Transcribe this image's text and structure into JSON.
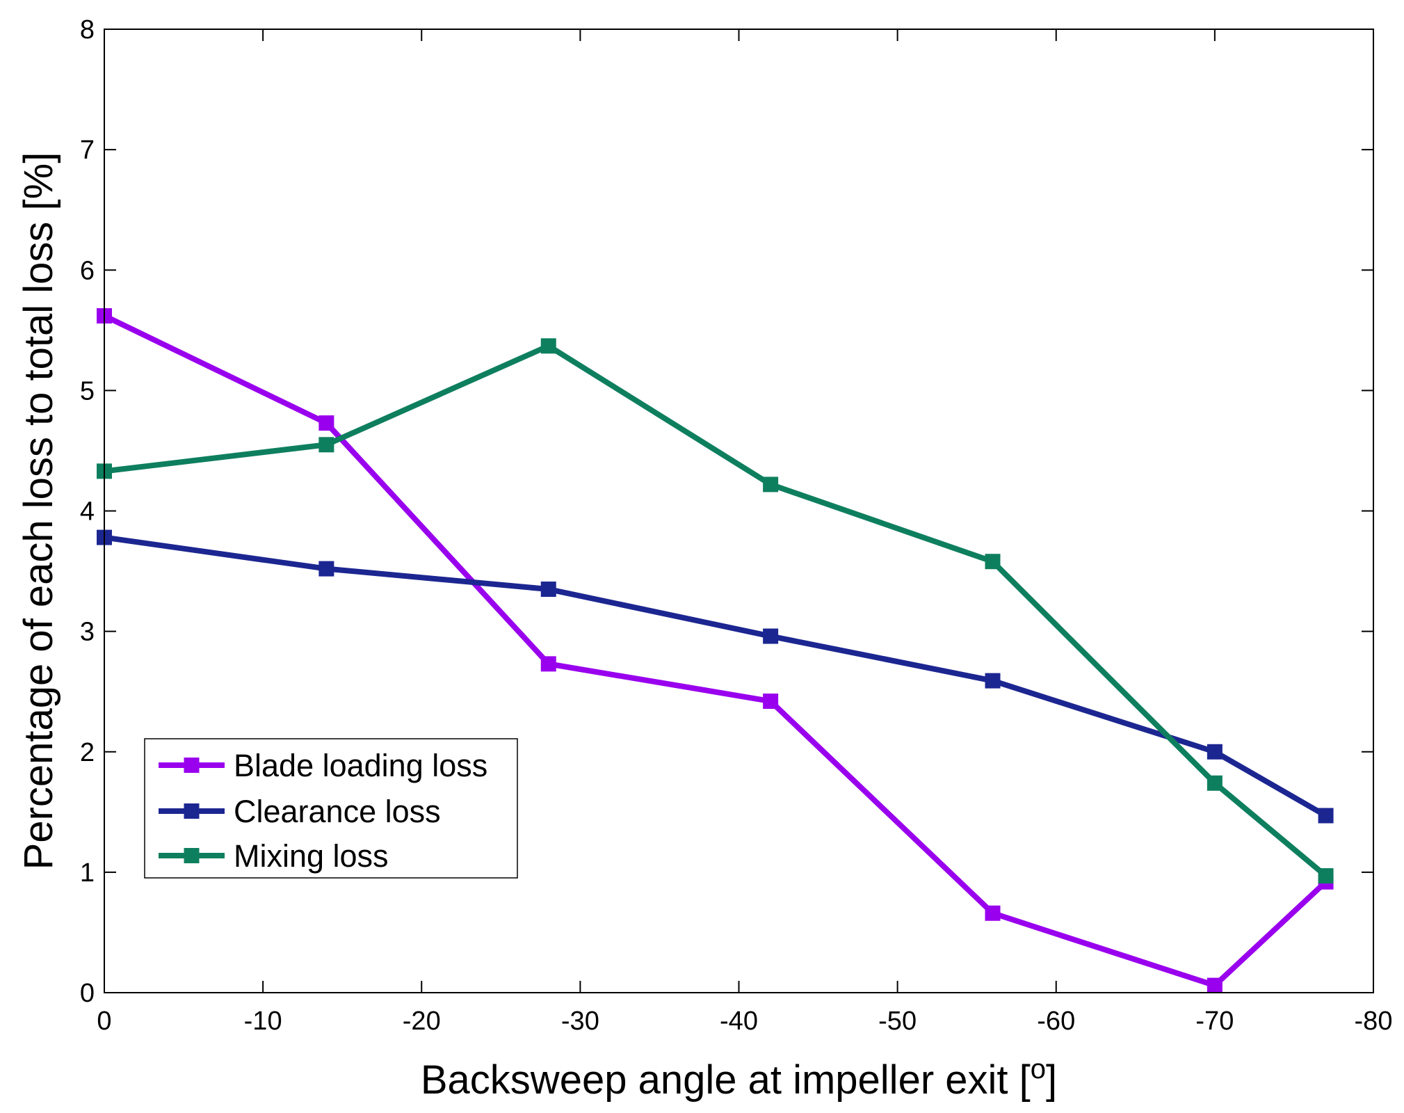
{
  "chart_data": {
    "type": "line",
    "title": "",
    "xlabel": "Backsweep angle at impeller exit [",
    "xlabel_sup": "o",
    "xlabel_close": "]",
    "ylabel": "Percentage of each loss to total loss [%]",
    "xlim": [
      0,
      -80
    ],
    "ylim": [
      0,
      8
    ],
    "grid": false,
    "legend_position": "lower-left",
    "x_ticks": [
      0,
      -10,
      -20,
      -30,
      -40,
      -50,
      -60,
      -70,
      -80
    ],
    "y_ticks": [
      0,
      1,
      2,
      3,
      4,
      5,
      6,
      7,
      8
    ],
    "x_tick_labels": [
      "0",
      "-10",
      "-20",
      "-30",
      "-40",
      "-50",
      "-60",
      "-70",
      "-80"
    ],
    "y_tick_labels": [
      "0",
      "1",
      "2",
      "3",
      "4",
      "5",
      "6",
      "7",
      "8"
    ],
    "x": [
      0,
      -14,
      -28,
      -42,
      -56,
      -70,
      -77
    ],
    "series": [
      {
        "name": "Blade loading loss",
        "color": "#9900ee",
        "values": [
          5.62,
          4.73,
          2.73,
          2.42,
          0.66,
          0.06,
          0.92
        ]
      },
      {
        "name": "Clearance loss",
        "color": "#1c2691",
        "values": [
          3.78,
          3.52,
          3.35,
          2.96,
          2.59,
          2.0,
          1.47
        ]
      },
      {
        "name": "Mixing loss",
        "color": "#0e7f5e",
        "values": [
          4.33,
          4.55,
          5.37,
          4.22,
          3.58,
          1.74,
          0.97
        ]
      }
    ]
  }
}
